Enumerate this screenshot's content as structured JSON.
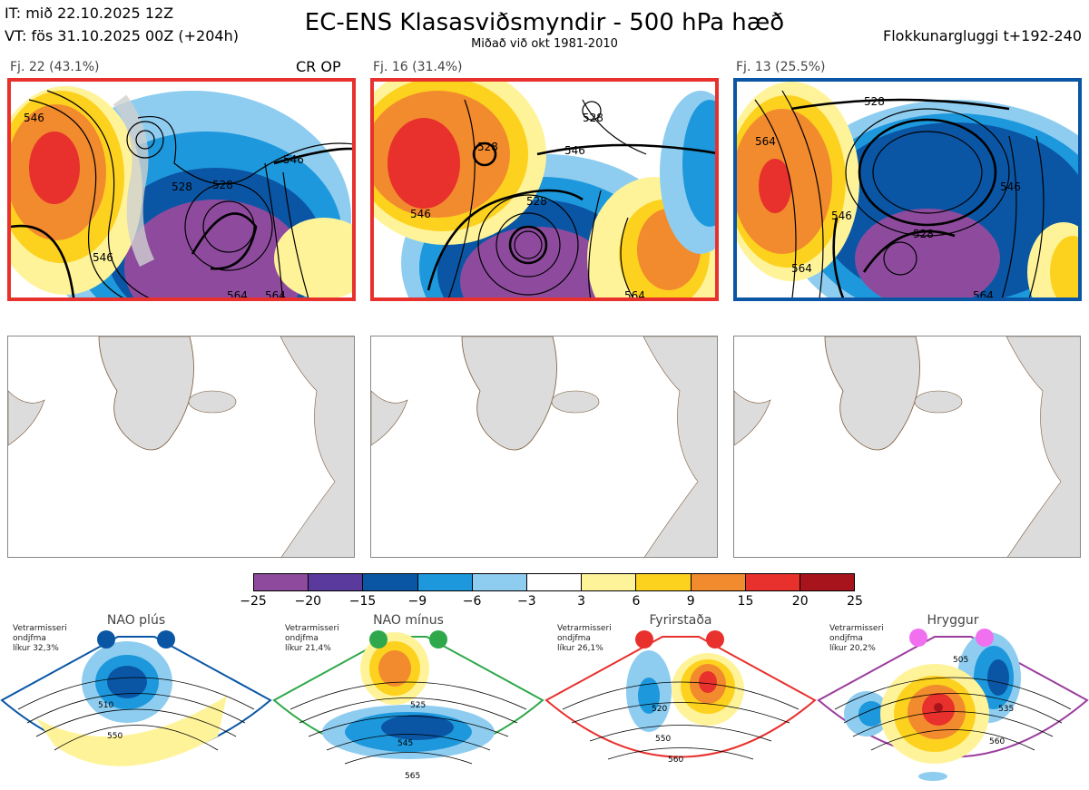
{
  "header": {
    "it": "IT: mið 22.10.2025 12Z",
    "vt": "VT: fös 31.10.2025 00Z  (+204h)",
    "title": "EC-ENS Klasasviðsmyndir - 500 hPa hæð",
    "subtitle": "Miðað við okt 1981-2010",
    "window": "Flokkunargluggi t+192-240"
  },
  "clusters": [
    {
      "label": "Fj. 22 (43.1%)",
      "border_color": "#e8302c",
      "tag": "CR OP",
      "contour_labels": [
        "546",
        "528",
        "528",
        "546",
        "546",
        "564",
        "564"
      ]
    },
    {
      "label": "Fj. 16 (31.4%)",
      "border_color": "#e8302c",
      "tag": "",
      "contour_labels": [
        "528",
        "528",
        "546",
        "528",
        "546",
        "564"
      ]
    },
    {
      "label": "Fj. 13 (25.5%)",
      "border_color": "#0a56a5",
      "tag": "",
      "contour_labels": [
        "528",
        "564",
        "546",
        "528",
        "546",
        "564",
        "564"
      ]
    }
  ],
  "colorbar": {
    "ticks": [
      "−25",
      "−20",
      "−15",
      "−9",
      "−6",
      "−3",
      "3",
      "6",
      "9",
      "15",
      "20",
      "25"
    ],
    "colors": [
      "#8e4b9e",
      "#5a3a9c",
      "#0a56a5",
      "#1d98dc",
      "#8ecdf0",
      "#ffffff",
      "#fff39a",
      "#fdd21e",
      "#f28a2e",
      "#e8302c",
      "#a8141c"
    ]
  },
  "regimes": [
    {
      "name": "NAO plús",
      "info": [
        "Vetrarmisseri",
        "ondjfma",
        "líkur 32,3%"
      ],
      "color": "#0a56a5",
      "contour_labels": [
        "510",
        "550"
      ]
    },
    {
      "name": "NAO mínus",
      "info": [
        "Vetrarmisseri",
        "ondjfma",
        "líkur 21,4%"
      ],
      "color": "#2ea84a",
      "contour_labels": [
        "525",
        "545",
        "565"
      ]
    },
    {
      "name": "Fyrirstaða",
      "info": [
        "Vetrarmisseri",
        "ondjfma",
        "líkur 26,1%"
      ],
      "color": "#e8302c",
      "contour_labels": [
        "520",
        "550",
        "560"
      ]
    },
    {
      "name": "Hryggur",
      "info": [
        "Vetrarmisseri",
        "ondjfma",
        "líkur 20,2%"
      ],
      "color": "#9b3b9e",
      "contour_labels": [
        "505",
        "535",
        "560"
      ]
    }
  ]
}
